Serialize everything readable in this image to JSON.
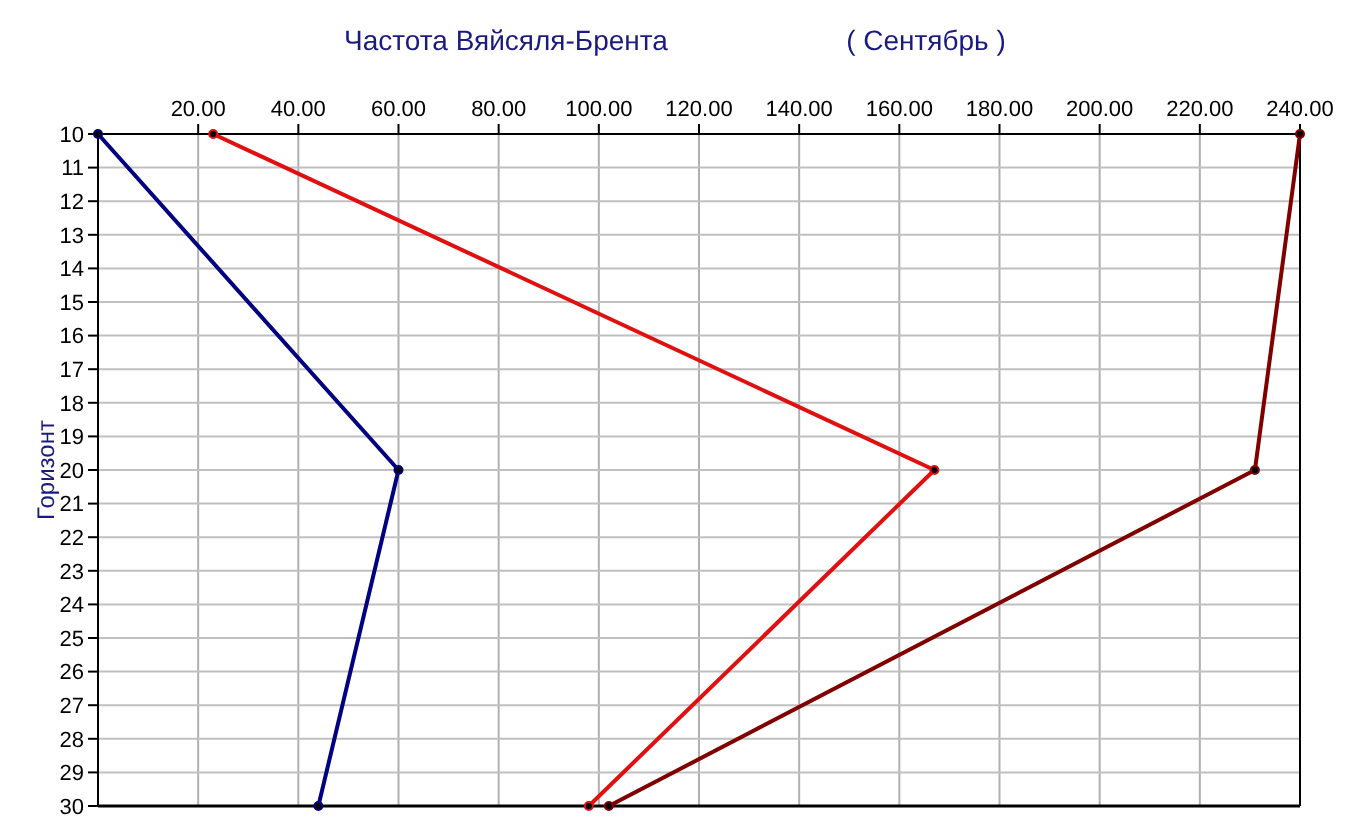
{
  "chart_data": {
    "type": "line",
    "title": "Частота Вяйсяля-Брента",
    "subtitle": "( Сентябрь )",
    "ylabel": "Горизонт",
    "x": [
      10,
      20,
      30
    ],
    "series": [
      {
        "color": "#000080",
        "values": [
          0,
          60,
          44
        ]
      },
      {
        "color": "#e01010",
        "values": [
          23,
          167,
          98
        ]
      },
      {
        "color": "#800000",
        "values": [
          240,
          231,
          102
        ]
      }
    ],
    "orientation": "horizontal",
    "xlim": [
      0,
      240
    ],
    "xticks": [
      {
        "value": 20,
        "label": "20.00"
      },
      {
        "value": 40,
        "label": "40.00"
      },
      {
        "value": 60,
        "label": "60.00"
      },
      {
        "value": 80,
        "label": "80.00"
      },
      {
        "value": 100,
        "label": "100.00"
      },
      {
        "value": 120,
        "label": "120.00"
      },
      {
        "value": 140,
        "label": "140.00"
      },
      {
        "value": 160,
        "label": "160.00"
      },
      {
        "value": 180,
        "label": "180.00"
      },
      {
        "value": 200,
        "label": "200.00"
      },
      {
        "value": 220,
        "label": "220.00"
      },
      {
        "value": 240,
        "label": "240.00"
      }
    ],
    "ylim": [
      30,
      10
    ],
    "yticks": [
      10,
      11,
      12,
      13,
      14,
      15,
      16,
      17,
      18,
      19,
      20,
      21,
      22,
      23,
      24,
      25,
      26,
      27,
      28,
      29,
      30
    ],
    "grid": true,
    "marker": "circle",
    "line_style": "solid"
  }
}
